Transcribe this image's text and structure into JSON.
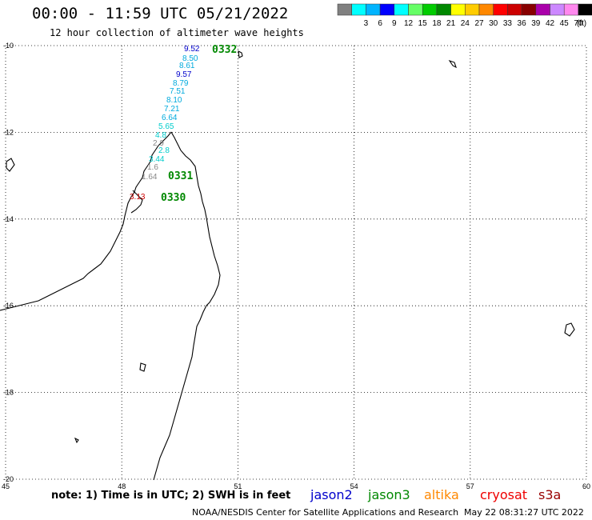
{
  "header": {
    "title": "00:00 - 11:59 UTC 05/21/2022",
    "subtitle": "12 hour collection of altimeter wave heights"
  },
  "legend": {
    "unit": "(ft)",
    "bins": [
      {
        "label": "",
        "color": "#808080"
      },
      {
        "label": "3",
        "color": "#00ffff"
      },
      {
        "label": "6",
        "color": "#00b4ff"
      },
      {
        "label": "9",
        "color": "#0000ff"
      },
      {
        "label": "12",
        "color": "#00ffff"
      },
      {
        "label": "15",
        "color": "#66ff66"
      },
      {
        "label": "18",
        "color": "#00cc00"
      },
      {
        "label": "21",
        "color": "#008800"
      },
      {
        "label": "24",
        "color": "#ffff00"
      },
      {
        "label": "27",
        "color": "#ffcc00"
      },
      {
        "label": "30",
        "color": "#ff8800"
      },
      {
        "label": "33",
        "color": "#ff0000"
      },
      {
        "label": "36",
        "color": "#cc0000"
      },
      {
        "label": "39",
        "color": "#880000"
      },
      {
        "label": "42",
        "color": "#aa00aa"
      },
      {
        "label": "45",
        "color": "#cc88ff"
      },
      {
        "label": "70",
        "color": "#ff88ee"
      },
      {
        "label": "",
        "color": "#000000"
      }
    ]
  },
  "map": {
    "lon_range": [
      45,
      60
    ],
    "lat_range": [
      -20,
      -10
    ],
    "lon_ticks": [
      "45",
      "48",
      "51",
      "54",
      "57",
      "60"
    ],
    "lat_ticks": [
      "-10",
      "-12",
      "-14",
      "-16",
      "-18",
      "-20"
    ]
  },
  "passes": [
    {
      "label": "0332",
      "color": "#008800"
    },
    {
      "label": "0331",
      "color": "#008800"
    },
    {
      "label": "0330",
      "color": "#008800"
    }
  ],
  "swh_labels": [
    {
      "text": "9.52",
      "color": "#0000cc"
    },
    {
      "text": "8.50",
      "color": "#00aadd"
    },
    {
      "text": "8.61",
      "color": "#00aadd"
    },
    {
      "text": "9.57",
      "color": "#0000cc"
    },
    {
      "text": "8.79",
      "color": "#00aadd"
    },
    {
      "text": "7.51",
      "color": "#00aadd"
    },
    {
      "text": "8.10",
      "color": "#00aadd"
    },
    {
      "text": "7.21",
      "color": "#00aadd"
    },
    {
      "text": "6.64",
      "color": "#00aadd"
    },
    {
      "text": "5.65",
      "color": "#00cccc"
    },
    {
      "text": "4.8",
      "color": "#00cccc"
    },
    {
      "text": "2.9",
      "color": "#888888"
    },
    {
      "text": "2.8",
      "color": "#00cccc"
    },
    {
      "text": "3.44",
      "color": "#00cccc"
    },
    {
      "text": "1.6",
      "color": "#888888"
    },
    {
      "text": "1.64",
      "color": "#888888"
    },
    {
      "text": "3.13",
      "color": "#cc0000"
    }
  ],
  "footer": {
    "note": "note: 1) Time is in UTC; 2) SWH is in feet",
    "satellites": [
      {
        "name": "jason2",
        "color": "#0000cc"
      },
      {
        "name": "jason3",
        "color": "#008800"
      },
      {
        "name": "altika",
        "color": "#ff8800"
      },
      {
        "name": "cryosat",
        "color": "#ee0000"
      },
      {
        "name": "s3a",
        "color": "#990000"
      }
    ],
    "credits": "NOAA/NESDIS Center for Satellite Applications and Research",
    "timestamp": "May 22 08:31:27 UTC 2022"
  }
}
